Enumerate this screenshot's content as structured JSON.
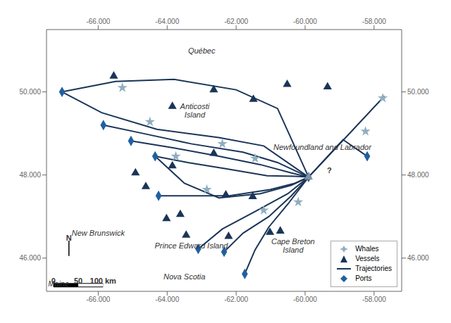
{
  "chart_data": {
    "type": "scatter",
    "xlim": [
      -67.5,
      -57.2
    ],
    "ylim": [
      45.2,
      51.5
    ],
    "xticks": [
      {
        "value": -66.0,
        "label": "-66.000"
      },
      {
        "value": -64.0,
        "label": "-64.000"
      },
      {
        "value": -62.0,
        "label": "-62.000"
      },
      {
        "value": -60.0,
        "label": "-60.000"
      },
      {
        "value": -58.0,
        "label": "-58.000"
      }
    ],
    "yticks": [
      {
        "value": 46.0,
        "label": "46.000"
      },
      {
        "value": 48.0,
        "label": "48.000"
      },
      {
        "value": 50.0,
        "label": "50.000"
      }
    ],
    "grid": false,
    "tick_labels": true,
    "legend": "lower right",
    "series": [
      {
        "name": "Whales",
        "type": "scatter",
        "marker": "star",
        "color": "#90aec0",
        "x": [
          -65.3,
          -64.5,
          -63.75,
          -62.85,
          -62.4,
          -61.45,
          -61.2,
          -60.2,
          -57.75,
          -58.25
        ],
        "y": [
          50.1,
          49.28,
          48.45,
          47.65,
          48.75,
          48.4,
          47.15,
          47.35,
          49.85,
          49.05
        ]
      },
      {
        "name": "Vessels",
        "type": "scatter",
        "marker": "triangle",
        "color": "#1a3558",
        "x": [
          -65.55,
          -63.85,
          -62.65,
          -61.5,
          -60.52,
          -59.35,
          -63.85,
          -62.65,
          -62.3,
          -61.52,
          -61.02,
          -62.22,
          -63.62,
          -64.62,
          -64.02,
          -60.72,
          -64.92,
          -63.45
        ],
        "y": [
          50.38,
          49.65,
          50.05,
          49.82,
          50.18,
          50.12,
          48.22,
          48.52,
          47.52,
          47.48,
          46.62,
          46.52,
          47.05,
          47.72,
          46.95,
          46.65,
          48.05,
          46.55
        ]
      },
      {
        "name": "Trajectories",
        "type": "line",
        "color": "#1a3558",
        "lines": [
          [
            [
              -67.05,
              50.0
            ],
            [
              -65.5,
              50.25
            ],
            [
              -63.8,
              50.3
            ],
            [
              -62.0,
              50.05
            ],
            [
              -60.8,
              49.6
            ],
            [
              -59.9,
              47.95
            ]
          ],
          [
            [
              -67.05,
              50.0
            ],
            [
              -65.9,
              49.5
            ],
            [
              -64.3,
              49.1
            ],
            [
              -62.5,
              48.9
            ],
            [
              -61.2,
              48.7
            ],
            [
              -59.9,
              47.95
            ]
          ],
          [
            [
              -65.85,
              49.2
            ],
            [
              -64.7,
              49.0
            ],
            [
              -63.3,
              48.75
            ],
            [
              -61.8,
              48.55
            ],
            [
              -60.8,
              48.3
            ],
            [
              -59.9,
              47.95
            ]
          ],
          [
            [
              -65.05,
              48.82
            ],
            [
              -63.8,
              48.65
            ],
            [
              -62.5,
              48.45
            ],
            [
              -61.3,
              48.25
            ],
            [
              -60.4,
              48.05
            ],
            [
              -59.9,
              47.95
            ]
          ],
          [
            [
              -64.35,
              48.45
            ],
            [
              -63.4,
              48.3
            ],
            [
              -62.3,
              48.15
            ],
            [
              -61.1,
              47.98
            ],
            [
              -60.3,
              47.97
            ],
            [
              -59.9,
              47.95
            ]
          ],
          [
            [
              -64.35,
              48.45
            ],
            [
              -63.5,
              47.8
            ],
            [
              -62.5,
              47.45
            ],
            [
              -61.3,
              47.55
            ],
            [
              -60.4,
              47.75
            ],
            [
              -59.9,
              47.95
            ]
          ],
          [
            [
              -64.25,
              47.5
            ],
            [
              -63.2,
              47.5
            ],
            [
              -62.2,
              47.5
            ],
            [
              -61.0,
              47.65
            ],
            [
              -60.3,
              47.8
            ],
            [
              -59.9,
              47.95
            ]
          ],
          [
            [
              -63.1,
              46.22
            ],
            [
              -62.4,
              46.7
            ],
            [
              -61.5,
              47.1
            ],
            [
              -60.5,
              47.55
            ],
            [
              -59.9,
              47.95
            ]
          ],
          [
            [
              -62.35,
              46.15
            ],
            [
              -61.8,
              46.6
            ],
            [
              -61.05,
              47.0
            ],
            [
              -60.4,
              47.5
            ],
            [
              -59.9,
              47.95
            ]
          ],
          [
            [
              -61.75,
              45.62
            ],
            [
              -61.45,
              46.2
            ],
            [
              -61.05,
              46.75
            ],
            [
              -60.5,
              47.3
            ],
            [
              -59.9,
              47.95
            ]
          ],
          [
            [
              -59.9,
              47.95
            ],
            [
              -58.9,
              48.85
            ],
            [
              -58.2,
              48.45
            ]
          ],
          [
            [
              -59.9,
              47.95
            ],
            [
              -58.6,
              49.1
            ],
            [
              -57.7,
              49.9
            ]
          ]
        ]
      },
      {
        "name": "Ports",
        "type": "scatter",
        "marker": "diamond",
        "color": "#2060a0",
        "x": [
          -67.05,
          -65.85,
          -65.05,
          -64.35,
          -64.25,
          -63.1,
          -62.35,
          -61.75,
          -59.9,
          -58.2
        ],
        "y": [
          50.0,
          49.2,
          48.82,
          48.45,
          47.5,
          46.22,
          46.15,
          45.62,
          47.95,
          48.45
        ]
      }
    ],
    "convergence_point": {
      "x": -59.9,
      "y": 47.95,
      "marker": "triangle",
      "color": "#8090a0"
    },
    "north_arrow": {
      "x": [
        -66.85,
        -66.85
      ],
      "y": [
        46.05,
        46.42
      ]
    },
    "scale_bar": {
      "x": [
        -67.3,
        -66.58,
        -65.86
      ],
      "y": 45.35
    },
    "region_labels": [
      {
        "text": "Québec",
        "x": -63.0,
        "y": 51.0
      },
      {
        "text": "Newfoundland and Labrador",
        "x": -59.5,
        "y": 48.68
      },
      {
        "text": "New Brunswick",
        "x": -66.0,
        "y": 46.6
      },
      {
        "text": "Prince Edward Island",
        "x": -63.3,
        "y": 46.3
      },
      {
        "text": "Nova Scotia",
        "x": -63.5,
        "y": 45.55
      },
      {
        "text": "Anticosti\nIsland",
        "x": -63.2,
        "y": 49.55
      },
      {
        "text": "Cape Breton\nIsland",
        "x": -60.35,
        "y": 46.3
      },
      {
        "text": "Maine",
        "x": -67.15,
        "y": 45.38
      }
    ],
    "annotations": [
      {
        "text": "?",
        "x": -59.3,
        "y": 48.12
      },
      {
        "text": "N",
        "x": -66.85,
        "y": 46.48
      },
      {
        "text": "0",
        "x": -67.3,
        "y": 45.45
      },
      {
        "text": "50",
        "x": -66.58,
        "y": 45.45
      },
      {
        "text": "100 km",
        "x": -65.86,
        "y": 45.45
      }
    ]
  }
}
